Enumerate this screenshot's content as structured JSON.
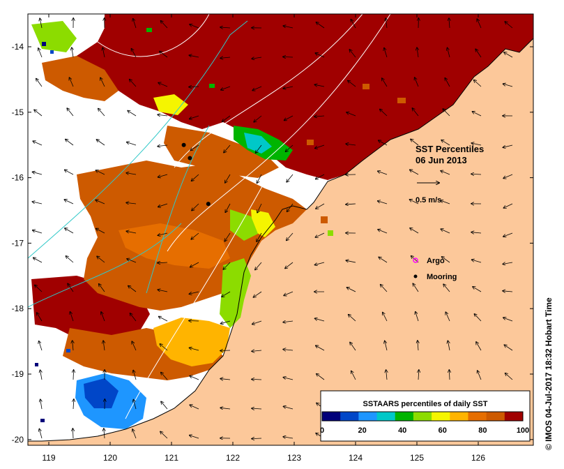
{
  "title": "SST Percentiles",
  "date": "06 Jun 2013",
  "vector_scale_label": "0.5 m/s",
  "legend": {
    "title": "SSTAARS percentiles of daily SST",
    "ticks": [
      "0",
      "20",
      "40",
      "60",
      "80",
      "100"
    ],
    "colors": [
      "#00007a",
      "#0046c8",
      "#1e96ff",
      "#00c8c8",
      "#00b400",
      "#8cdc00",
      "#f5f500",
      "#ffb400",
      "#e66e00",
      "#cd5a00",
      "#a00000"
    ]
  },
  "markers": [
    {
      "label": "Argo",
      "color": "#ff00ff",
      "symbol": "circle-open"
    },
    {
      "label": "Mooring",
      "color": "#000000",
      "symbol": "dot"
    }
  ],
  "axes": {
    "x_ticks": [
      "119",
      "120",
      "121",
      "122",
      "123",
      "124",
      "125",
      "126"
    ],
    "y_ticks": [
      "-14",
      "-15",
      "-16",
      "-17",
      "-18",
      "-19",
      "-20"
    ]
  },
  "credit": "IMOS 04-Jul-2017 18:32 Hobart Time",
  "copyright_symbol": "©",
  "colors": {
    "land": "#fcc89a",
    "no_data": "#ffffff",
    "coast": "#000000",
    "contour_white": "#ffffff",
    "contour_cyan": "#30c8c8"
  },
  "moorings_lonlat": [
    [
      121.2,
      -15.5
    ],
    [
      121.3,
      -15.7
    ],
    [
      121.6,
      -16.4
    ]
  ]
}
